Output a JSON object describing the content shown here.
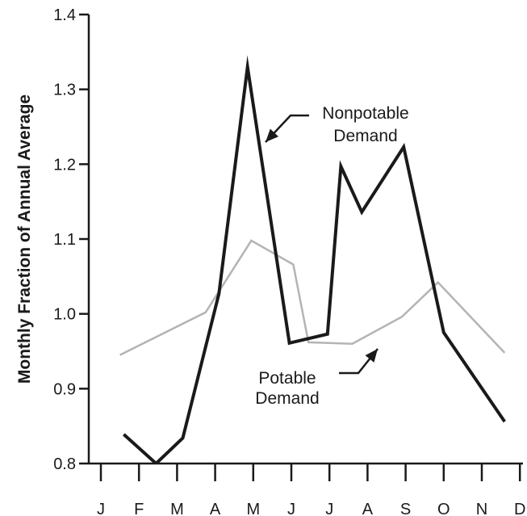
{
  "chart_data": {
    "type": "line",
    "categories": [
      "J",
      "F",
      "M",
      "A",
      "M",
      "J",
      "J",
      "A",
      "S",
      "O",
      "N",
      "D"
    ],
    "ylabel": "Monthly Fraction of Annual Average",
    "ylim": [
      0.8,
      1.4
    ],
    "yticks": [
      "0.8",
      "0.9",
      "1.0",
      "1.1",
      "1.2",
      "1.3",
      "1.4"
    ],
    "grid": false,
    "series": [
      {
        "name": "Nonpotable Demand",
        "color": "#1a1a1a",
        "points": [
          {
            "x": 0.6,
            "y": 0.839
          },
          {
            "x": 1.45,
            "y": 0.8
          },
          {
            "x": 2.15,
            "y": 0.834
          },
          {
            "x": 3.1,
            "y": 1.027
          },
          {
            "x": 3.85,
            "y": 1.33
          },
          {
            "x": 4.95,
            "y": 0.961
          },
          {
            "x": 5.95,
            "y": 0.973
          },
          {
            "x": 6.3,
            "y": 1.197
          },
          {
            "x": 6.85,
            "y": 1.136
          },
          {
            "x": 7.95,
            "y": 1.223
          },
          {
            "x": 9.0,
            "y": 0.975
          },
          {
            "x": 10.6,
            "y": 0.856
          }
        ]
      },
      {
        "name": "Potable Demand",
        "color": "#b4b4b4",
        "points": [
          {
            "x": 0.5,
            "y": 0.945
          },
          {
            "x": 2.75,
            "y": 1.002
          },
          {
            "x": 3.95,
            "y": 1.098
          },
          {
            "x": 5.05,
            "y": 1.066
          },
          {
            "x": 5.45,
            "y": 0.962
          },
          {
            "x": 6.6,
            "y": 0.96
          },
          {
            "x": 7.9,
            "y": 0.996
          },
          {
            "x": 8.85,
            "y": 1.042
          },
          {
            "x": 10.6,
            "y": 0.948
          }
        ]
      }
    ],
    "annotations": [
      {
        "lines": [
          "Nonpotable",
          "Demand"
        ]
      },
      {
        "lines": [
          "Potable",
          "Demand"
        ]
      }
    ]
  }
}
